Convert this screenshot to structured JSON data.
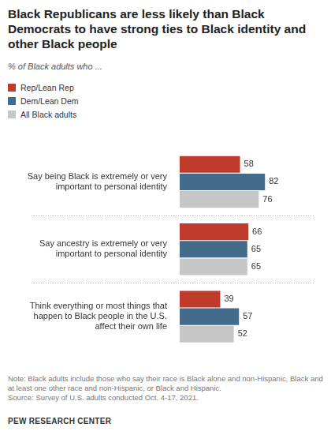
{
  "chart_data": {
    "type": "bar",
    "orientation": "horizontal",
    "title": "Black Republicans are less likely than Black Democrats to have strong ties to Black identity and other Black people",
    "subtitle": "% of Black adults who ...",
    "categories": [
      "Say being Black is extremely or very important to personal identity",
      "Say ancestry is extremely or very important to personal identity",
      "Think everything or most things that happen to Black people in the U.S. affect their own life"
    ],
    "series": [
      {
        "name": "Rep/Lean Rep",
        "color": "#bf3b2b",
        "values": [
          58,
          66,
          39
        ]
      },
      {
        "name": "Dem/Lean Dem",
        "color": "#436c8c",
        "values": [
          82,
          65,
          57
        ]
      },
      {
        "name": "All Black adults",
        "color": "#c6c6c6",
        "values": [
          76,
          65,
          52
        ]
      }
    ],
    "xlim": [
      0,
      100
    ],
    "tick_labels": false,
    "grid": false,
    "legend": "top-left",
    "data_labels": true,
    "note": "Note: Black adults include those who say their race is Black alone and non-Hispanic, Black and at least one other race and non-Hispanic, or Black and Hispanic.",
    "source": "Source: Survey of U.S. adults conducted Oct. 4-17, 2021.",
    "credit": "PEW RESEARCH CENTER"
  }
}
